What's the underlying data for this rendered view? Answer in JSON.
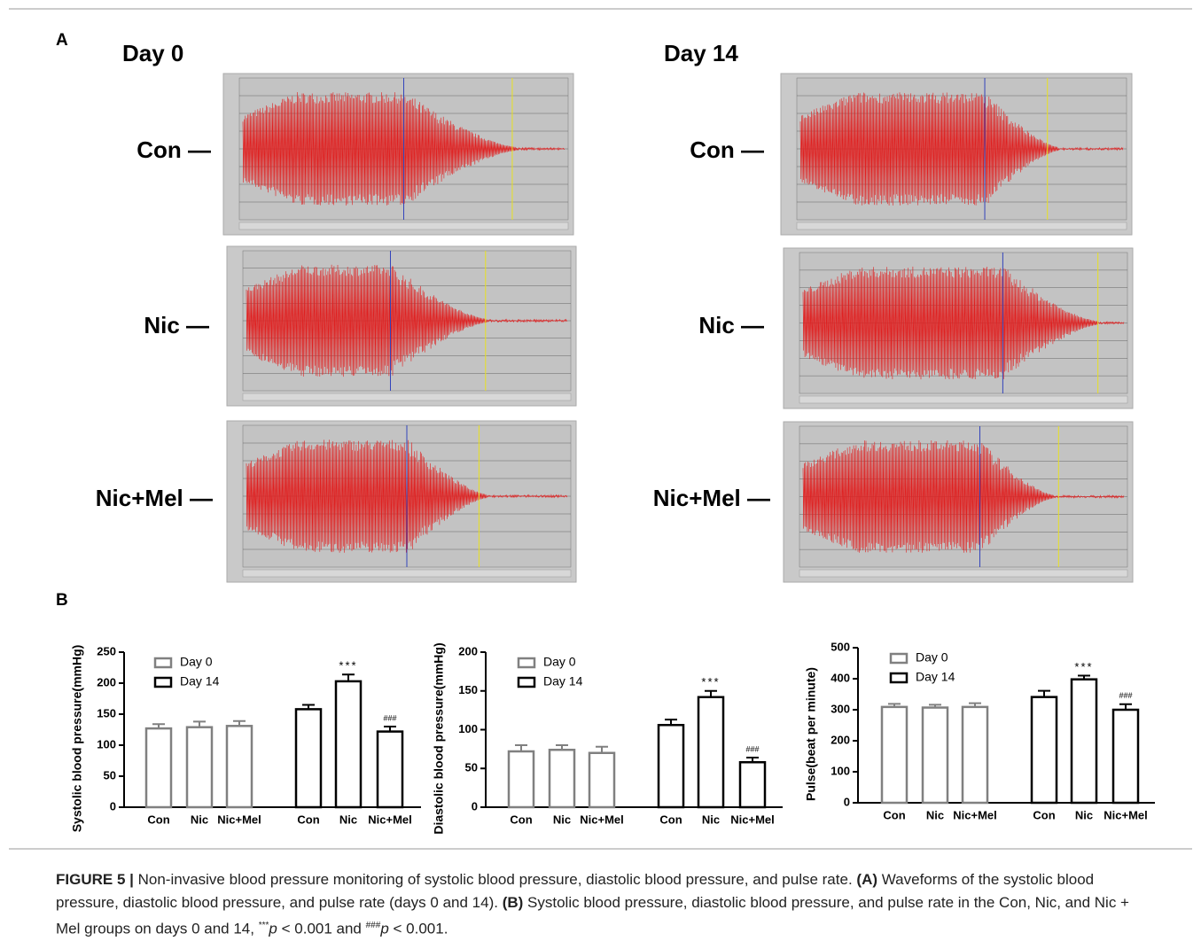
{
  "figure": {
    "panel_a": {
      "label": "A",
      "columns": [
        "Day 0",
        "Day 14"
      ],
      "rows": [
        "Con —",
        "Nic —",
        "Nic+Mel —"
      ]
    },
    "panel_b_label": "B"
  },
  "chart_data": [
    {
      "type": "bar",
      "y_label": "Systolic blood pressure(mmHg)",
      "categories": [
        "Con",
        "Nic",
        "Nic+Mel",
        "Con",
        "Nic",
        "Nic+Mel"
      ],
      "series": [
        {
          "name": "Day 0",
          "color": "#808080",
          "values": [
            127,
            129,
            131,
            null,
            null,
            null
          ],
          "errors": [
            7,
            9,
            8,
            null,
            null,
            null
          ]
        },
        {
          "name": "Day 14",
          "color": "#000000",
          "values": [
            null,
            null,
            null,
            158,
            203,
            122
          ],
          "errors": [
            null,
            null,
            null,
            7,
            11,
            8
          ],
          "significance": [
            null,
            null,
            null,
            null,
            "***",
            "###"
          ]
        }
      ],
      "ylim": [
        0,
        250
      ],
      "yticks": [
        0,
        50,
        100,
        150,
        200,
        250
      ]
    },
    {
      "type": "bar",
      "y_label": "Diastolic blood pressure(mmHg)",
      "categories": [
        "Con",
        "Nic",
        "Nic+Mel",
        "Con",
        "Nic",
        "Nic+Mel"
      ],
      "series": [
        {
          "name": "Day 0",
          "color": "#808080",
          "values": [
            72,
            74,
            70,
            null,
            null,
            null
          ],
          "errors": [
            8,
            6,
            8,
            null,
            null,
            null
          ]
        },
        {
          "name": "Day 14",
          "color": "#000000",
          "values": [
            null,
            null,
            null,
            106,
            142,
            58
          ],
          "errors": [
            null,
            null,
            null,
            7,
            8,
            6
          ],
          "significance": [
            null,
            null,
            null,
            null,
            "***",
            "###"
          ]
        }
      ],
      "ylim": [
        0,
        200
      ],
      "yticks": [
        0,
        50,
        100,
        150,
        200
      ]
    },
    {
      "type": "bar",
      "y_label": "Pulse(beat per minute)",
      "categories": [
        "Con",
        "Nic",
        "Nic+Mel",
        "Con",
        "Nic",
        "Nic+Mel"
      ],
      "series": [
        {
          "name": "Day 0",
          "color": "#808080",
          "values": [
            309,
            307,
            309,
            null,
            null,
            null
          ],
          "errors": [
            10,
            9,
            12,
            null,
            null,
            null
          ]
        },
        {
          "name": "Day 14",
          "color": "#000000",
          "values": [
            null,
            null,
            null,
            341,
            398,
            300
          ],
          "errors": [
            null,
            null,
            null,
            20,
            12,
            18
          ],
          "significance": [
            null,
            null,
            null,
            null,
            "***",
            "###"
          ]
        }
      ],
      "ylim": [
        0,
        500
      ],
      "yticks": [
        0,
        100,
        200,
        300,
        400,
        500
      ]
    }
  ],
  "caption": {
    "parts": [
      "FIGURE 5 |",
      "Non-invasive blood pressure monitoring of systolic blood pressure, diastolic blood pressure, and pulse rate.",
      "(A)",
      "Waveforms of the systolic blood pressure, diastolic blood pressure, and pulse rate (days 0 and 14).",
      "(B)",
      "Systolic blood pressure, diastolic blood pressure, and pulse rate in the Con, Nic, and Nic + Mel groups on days 0 and 14,",
      "***",
      "p",
      "< 0.001 and",
      "###",
      "p",
      "< 0.001."
    ]
  }
}
